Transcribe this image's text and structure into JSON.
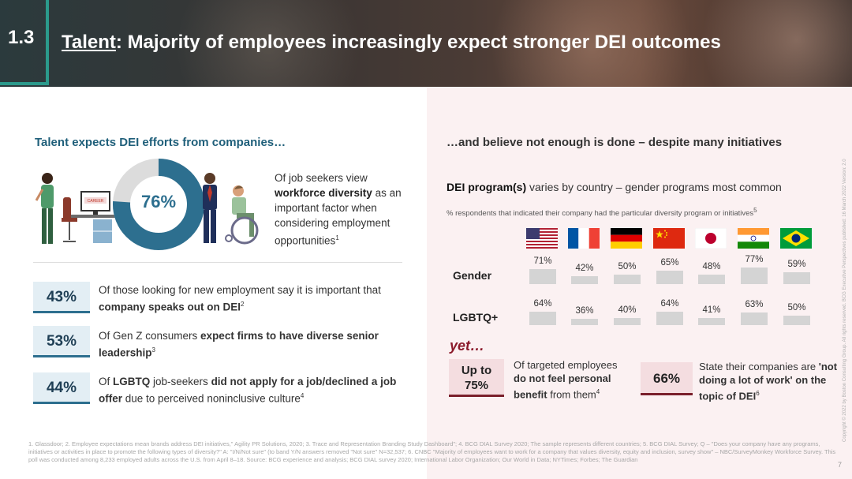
{
  "header": {
    "section_number": "1.3",
    "title_lead": "Talent",
    "title_rest": ": Majority of employees increasingly expect stronger DEI outcomes"
  },
  "left": {
    "heading": "Talent expects DEI efforts from companies…",
    "donut": {
      "value_label": "76%",
      "value": 76,
      "color": "#2d6f8f",
      "track_color": "#dcdcdc",
      "desc_pre": "Of job seekers view ",
      "desc_bold": "workforce diversity",
      "desc_post": " as an important factor when considering employment opportunities",
      "desc_sup": "1"
    },
    "stats": [
      {
        "value": "43%",
        "pre": "Of those looking for new employment say it is important that ",
        "bold": "company speaks out on DEI",
        "post": "",
        "sup": "2"
      },
      {
        "value": "53%",
        "pre": "Of Gen Z consumers ",
        "bold": "expect firms to have diverse senior leadership",
        "post": "",
        "sup": "3"
      },
      {
        "value": "44%",
        "pre": "Of ",
        "bold": "LGBTQ",
        "mid": " job-seekers ",
        "bold2": "did not apply for a job/declined a job offer",
        "post": " due to perceived noninclusive culture",
        "sup": "4"
      }
    ],
    "illustration_text": "CAREER"
  },
  "right": {
    "heading": "…and believe not enough is done – despite many initiatives",
    "program_title_bold": "DEI program(s)",
    "program_title_rest": " varies by country – gender programs most common",
    "program_note": "% respondents that indicated their company had the particular diversity program or initiatives",
    "program_note_sup": "5",
    "countries": [
      "usa-flag-icon",
      "france-flag-icon",
      "germany-flag-icon",
      "china-flag-icon",
      "japan-flag-icon",
      "india-flag-icon",
      "brazil-flag-icon"
    ],
    "rows": [
      {
        "label": "Gender",
        "values": [
          "71%",
          "42%",
          "50%",
          "65%",
          "48%",
          "77%",
          "59%"
        ]
      },
      {
        "label": "LGBTQ+",
        "values": [
          "64%",
          "36%",
          "40%",
          "64%",
          "41%",
          "63%",
          "50%"
        ]
      }
    ],
    "yet_label": "yet…",
    "yet_items": [
      {
        "value_line1": "Up to",
        "value_line2": "75%",
        "pre": "Of targeted employees ",
        "bold": "do not feel personal benefit",
        "post": " from them",
        "sup": "4"
      },
      {
        "value_line1": "66%",
        "pre": "State their companies are ",
        "bold": "'not doing a lot of work' on the topic of DEI",
        "post": "",
        "sup": "6"
      }
    ]
  },
  "chart_data": {
    "type": "bar",
    "title": "DEI program(s) varies by country – gender programs most common",
    "categories": [
      "USA",
      "France",
      "Germany",
      "China",
      "Japan",
      "India",
      "Brazil"
    ],
    "series": [
      {
        "name": "Gender",
        "values": [
          71,
          42,
          50,
          65,
          48,
          77,
          59
        ]
      },
      {
        "name": "LGBTQ+",
        "values": [
          64,
          36,
          40,
          64,
          41,
          63,
          50
        ]
      }
    ],
    "ylim": [
      0,
      100
    ],
    "bar_color": "#d4d4d4"
  },
  "footnote": "1. Glassdoor; 2. Employee expectations mean brands address DEI initiatives,\" Agility PR Solutions, 2020; 3. Trace and Representation Branding Study Dashboard\"; 4. BCG DIAL Survey 2020; The sample represents different countries; 5. BCG DIAL Survey; Q – \"Does your company have any programs, initiatives or activities in place to promote the following types of diversity?\" A: \"I/N/Not sure\" (to band Y/N answers removed \"Not sure\" N=32,537; 6. CNBC \"Majority of employees want to work for a company that values diversity, equity and inclusion, survey show\" – NBC/SurveyMonkey Workforce Survey. This poll was conducted among 8,233 employed adults across the U.S. from April 8–18. Source: BCG experience and analysis; BCG DIAL survey 2020; International Labor Organization; Our World in Data; NYTimes; Forbes; The Guardian",
  "page_number": "7",
  "copyright": "Copyright © 2022 by Boston Consulting Group. All rights reserved. BCG Executive Perspectives published: 16 March 2022 Version: 2.0"
}
